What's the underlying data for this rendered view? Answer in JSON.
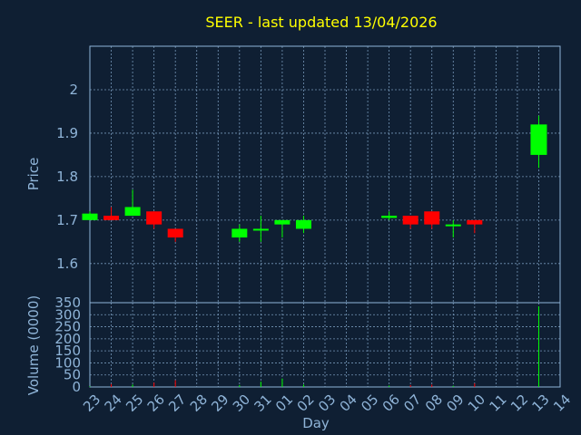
{
  "chart_data": {
    "type": "candlestick",
    "title": "SEER - last updated 13/04/2026",
    "xlabel": "Day",
    "ylabel": "Price",
    "volume_label": "Volume (0000)",
    "grid": true,
    "colors": {
      "up": "#00ff00",
      "down": "#ff0000",
      "text": "#8fb4d8",
      "title": "#ffff00",
      "background": "#0f1f33"
    },
    "x_tick_labels": [
      "23",
      "24",
      "25",
      "26",
      "27",
      "28",
      "29",
      "30",
      "31",
      "01",
      "02",
      "03",
      "04",
      "05",
      "06",
      "07",
      "08",
      "09",
      "10",
      "11",
      "12",
      "13",
      "14"
    ],
    "price_ticks": [
      "1.6",
      "1.7",
      "1.8",
      "1.9",
      "2"
    ],
    "price_ylim": [
      1.51,
      2.1
    ],
    "volume_ticks": [
      "0",
      "50",
      "100",
      "150",
      "200",
      "250",
      "300",
      "350"
    ],
    "volume_ylim": [
      0,
      350
    ],
    "candles": [
      {
        "day": "23",
        "open": 1.7,
        "high": 1.72,
        "low": 1.7,
        "close": 1.715,
        "volume": 3
      },
      {
        "day": "24",
        "open": 1.71,
        "high": 1.73,
        "low": 1.7,
        "close": 1.7,
        "volume": 12
      },
      {
        "day": "25",
        "open": 1.71,
        "high": 1.77,
        "low": 1.71,
        "close": 1.73,
        "volume": 10
      },
      {
        "day": "26",
        "open": 1.72,
        "high": 1.72,
        "low": 1.68,
        "close": 1.69,
        "volume": 18
      },
      {
        "day": "27",
        "open": 1.68,
        "high": 1.68,
        "low": 1.65,
        "close": 1.66,
        "volume": 28
      },
      {
        "day": "30",
        "open": 1.66,
        "high": 1.69,
        "low": 1.65,
        "close": 1.68,
        "volume": 8
      },
      {
        "day": "31",
        "open": 1.68,
        "high": 1.71,
        "low": 1.65,
        "close": 1.68,
        "volume": 22
      },
      {
        "day": "01",
        "open": 1.69,
        "high": 1.7,
        "low": 1.66,
        "close": 1.7,
        "volume": 35
      },
      {
        "day": "02",
        "open": 1.68,
        "high": 1.71,
        "low": 1.67,
        "close": 1.7,
        "volume": 10
      },
      {
        "day": "06",
        "open": 1.705,
        "high": 1.72,
        "low": 1.7,
        "close": 1.71,
        "volume": 6
      },
      {
        "day": "07",
        "open": 1.71,
        "high": 1.71,
        "low": 1.68,
        "close": 1.69,
        "volume": 8
      },
      {
        "day": "08",
        "open": 1.72,
        "high": 1.72,
        "low": 1.68,
        "close": 1.69,
        "volume": 10
      },
      {
        "day": "09",
        "open": 1.69,
        "high": 1.7,
        "low": 1.66,
        "close": 1.69,
        "volume": 5
      },
      {
        "day": "10",
        "open": 1.7,
        "high": 1.7,
        "low": 1.67,
        "close": 1.69,
        "volume": 15
      },
      {
        "day": "13",
        "open": 1.85,
        "high": 1.94,
        "low": 1.82,
        "close": 1.92,
        "volume": 335
      }
    ]
  }
}
